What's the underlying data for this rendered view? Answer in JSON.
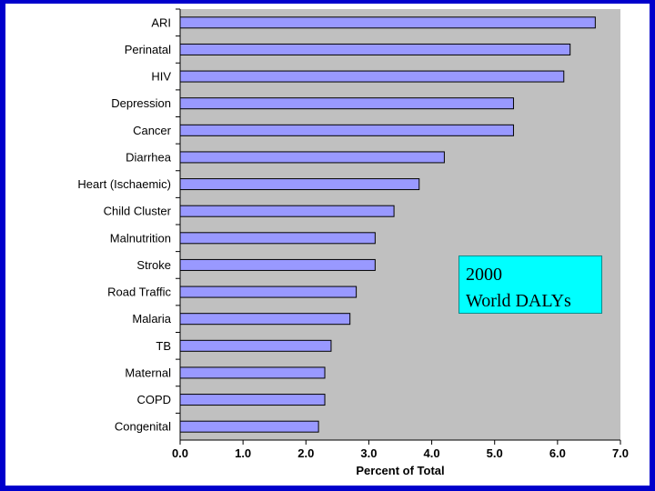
{
  "chart_data": {
    "type": "bar",
    "orientation": "horizontal",
    "categories": [
      "ARI",
      "Perinatal",
      "HIV",
      "Depression",
      "Cancer",
      "Diarrhea",
      "Heart (Ischaemic)",
      "Child Cluster",
      "Malnutrition",
      "Stroke",
      "Road Traffic",
      "Malaria",
      "TB",
      "Maternal",
      "COPD",
      "Congenital"
    ],
    "values": [
      6.6,
      6.2,
      6.1,
      5.3,
      5.3,
      4.2,
      3.8,
      3.4,
      3.1,
      3.1,
      2.8,
      2.7,
      2.4,
      2.3,
      2.3,
      2.2
    ],
    "xlabel": "Percent of Total",
    "ylabel": "",
    "xlim": [
      0.0,
      7.0
    ],
    "xticks": [
      "0.0",
      "1.0",
      "2.0",
      "3.0",
      "4.0",
      "5.0",
      "6.0",
      "7.0"
    ],
    "grid": false,
    "annotation": [
      "2000",
      "World DALYs"
    ],
    "colors": {
      "bar_fill": "#9999ff",
      "plot_background": "#c0c0c0",
      "annotation_background": "#00ffff",
      "frame": "#0000cc"
    }
  }
}
